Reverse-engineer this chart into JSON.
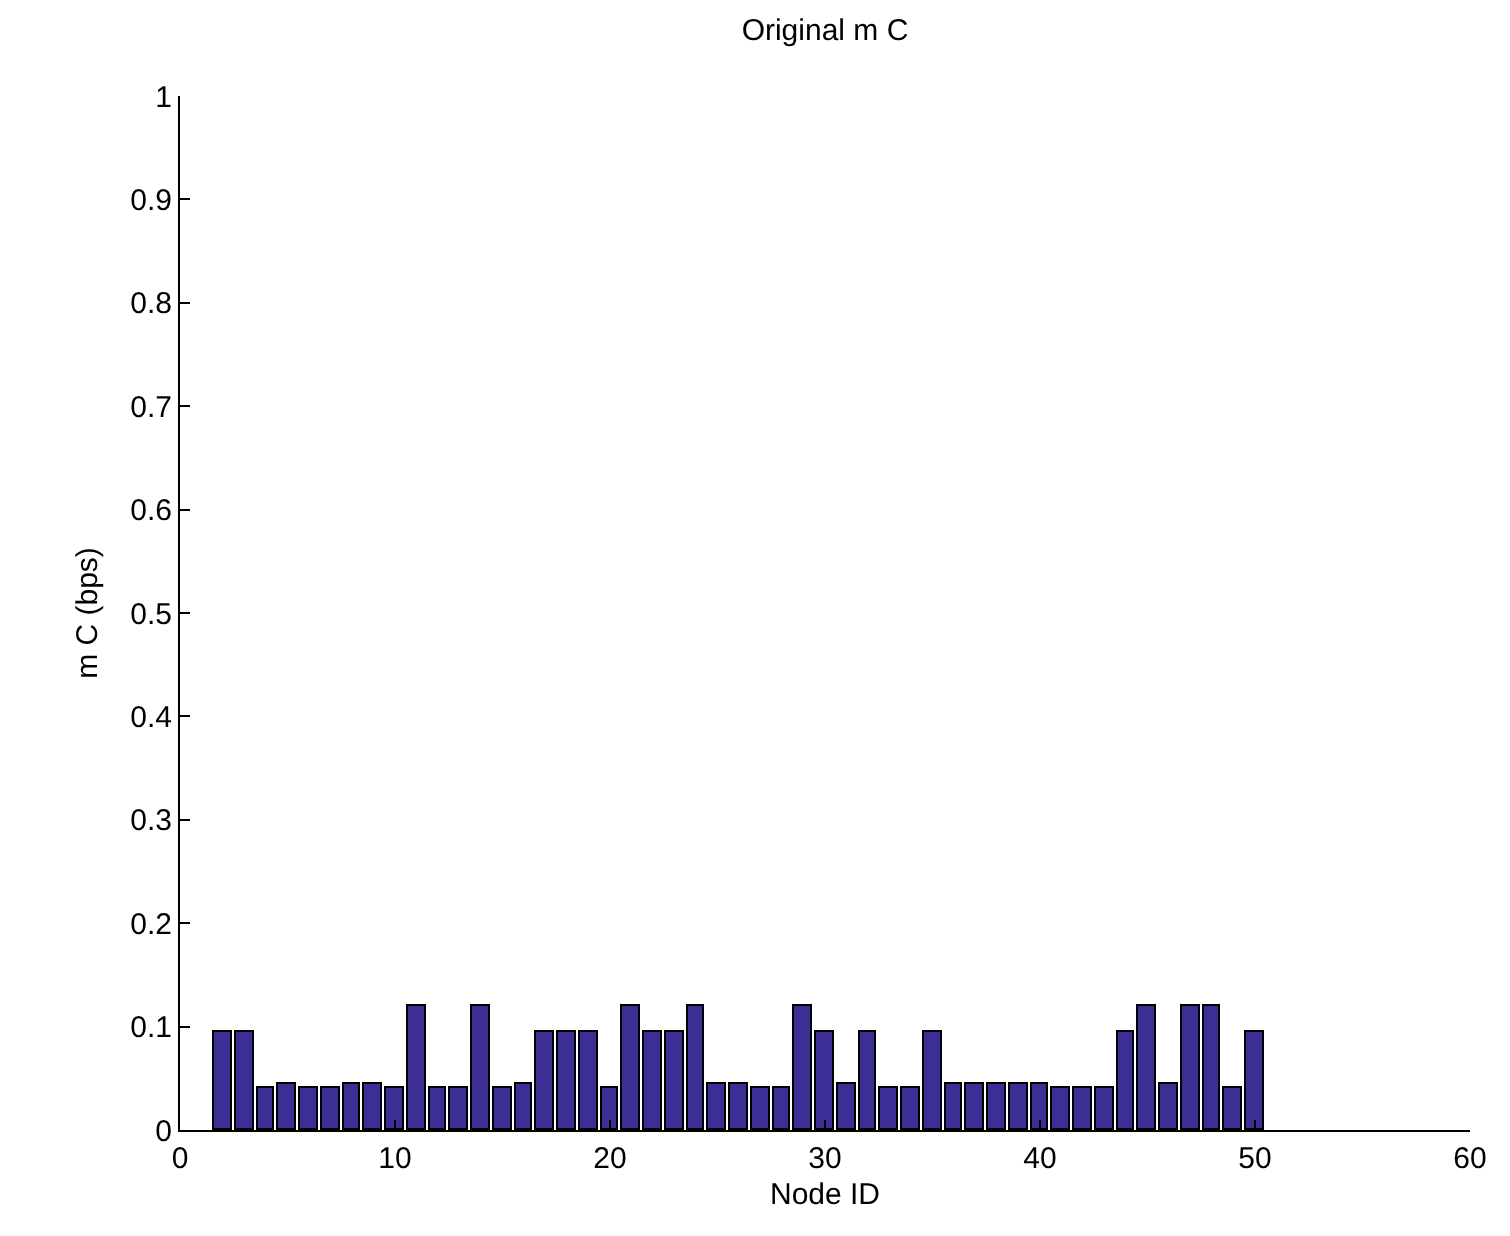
{
  "chart_data": {
    "type": "bar",
    "title": "Original m C",
    "xlabel": "Node ID",
    "ylabel": "m C (bps)",
    "x": [
      2,
      3,
      4,
      5,
      6,
      7,
      8,
      9,
      10,
      11,
      12,
      13,
      14,
      15,
      16,
      17,
      18,
      19,
      20,
      21,
      22,
      23,
      24,
      25,
      26,
      27,
      28,
      29,
      30,
      31,
      32,
      33,
      34,
      35,
      36,
      37,
      38,
      39,
      40,
      41,
      42,
      43,
      44,
      45,
      46,
      47,
      48,
      49,
      50
    ],
    "series": [
      {
        "color": "#3b2f96",
        "values": [
          0.095,
          0.095,
          0.04,
          0.045,
          0.04,
          0.04,
          0.045,
          0.045,
          0.04,
          0.12,
          0.04,
          0.04,
          0.12,
          0.04,
          0.045,
          0.095,
          0.095,
          0.095,
          0.04,
          0.12,
          0.095,
          0.095,
          0.12,
          0.045,
          0.045,
          0.04,
          0.04,
          0.12,
          0.095,
          0.045,
          0.095,
          0.04,
          0.04,
          0.095,
          0.045,
          0.045,
          0.045,
          0.045,
          0.045,
          0.04,
          0.04,
          0.04,
          0.095,
          0.12,
          0.045,
          0.12,
          0.12,
          0.04,
          0.095
        ]
      }
    ],
    "xlim": [
      0,
      60
    ],
    "xticks": [
      0,
      10,
      20,
      30,
      40,
      50,
      60
    ],
    "ylim": [
      0,
      1
    ],
    "yticks": [
      0,
      0.1,
      0.2,
      0.3,
      0.4,
      0.5,
      0.6,
      0.7,
      0.8,
      0.9,
      1
    ]
  }
}
